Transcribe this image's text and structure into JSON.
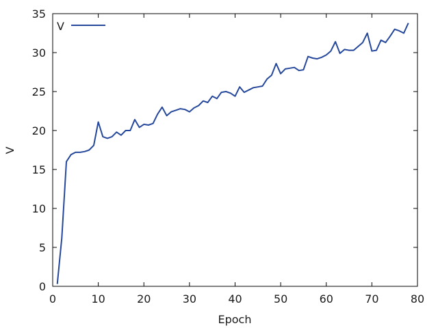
{
  "chart_data": {
    "type": "line",
    "title": "",
    "xlabel": "Epoch",
    "ylabel": "V",
    "xlim": [
      0,
      80
    ],
    "ylim": [
      0,
      35
    ],
    "x_ticks": [
      0,
      10,
      20,
      30,
      40,
      50,
      60,
      70,
      80
    ],
    "y_ticks": [
      0,
      5,
      10,
      15,
      20,
      25,
      30,
      35
    ],
    "grid": false,
    "legend": {
      "placement": "top-left"
    },
    "colors": {
      "series": "#24479b",
      "axis": "#000000"
    },
    "series": [
      {
        "name": "V",
        "x": [
          1,
          2,
          3,
          4,
          5,
          6,
          7,
          8,
          9,
          10,
          11,
          12,
          13,
          14,
          15,
          16,
          17,
          18,
          19,
          20,
          21,
          22,
          23,
          24,
          25,
          26,
          27,
          28,
          29,
          30,
          31,
          32,
          33,
          34,
          35,
          36,
          37,
          38,
          39,
          40,
          41,
          42,
          43,
          44,
          45,
          46,
          47,
          48,
          49,
          50,
          51,
          52,
          53,
          54,
          55,
          56,
          57,
          58,
          59,
          60,
          61,
          62,
          63,
          64,
          65,
          66,
          67,
          68,
          69,
          70,
          71,
          72,
          73,
          74,
          75,
          76,
          77,
          78
        ],
        "values": [
          0.3,
          6.2,
          16.0,
          16.9,
          17.2,
          17.2,
          17.3,
          17.5,
          18.1,
          21.1,
          19.2,
          19.0,
          19.2,
          19.8,
          19.4,
          20.0,
          20.0,
          21.4,
          20.4,
          20.8,
          20.7,
          20.9,
          22.1,
          23.0,
          21.9,
          22.4,
          22.6,
          22.8,
          22.7,
          22.4,
          22.9,
          23.2,
          23.8,
          23.6,
          24.4,
          24.1,
          24.9,
          25.0,
          24.8,
          24.4,
          25.6,
          24.9,
          25.2,
          25.5,
          25.6,
          25.7,
          26.6,
          27.1,
          28.6,
          27.3,
          27.9,
          28.0,
          28.1,
          27.7,
          27.8,
          29.5,
          29.3,
          29.2,
          29.4,
          29.7,
          30.2,
          31.4,
          29.9,
          30.4,
          30.3,
          30.3,
          30.8,
          31.3,
          32.5,
          30.2,
          30.3,
          31.6,
          31.3,
          32.1,
          33.0,
          32.8,
          32.5,
          33.8
        ]
      }
    ]
  }
}
